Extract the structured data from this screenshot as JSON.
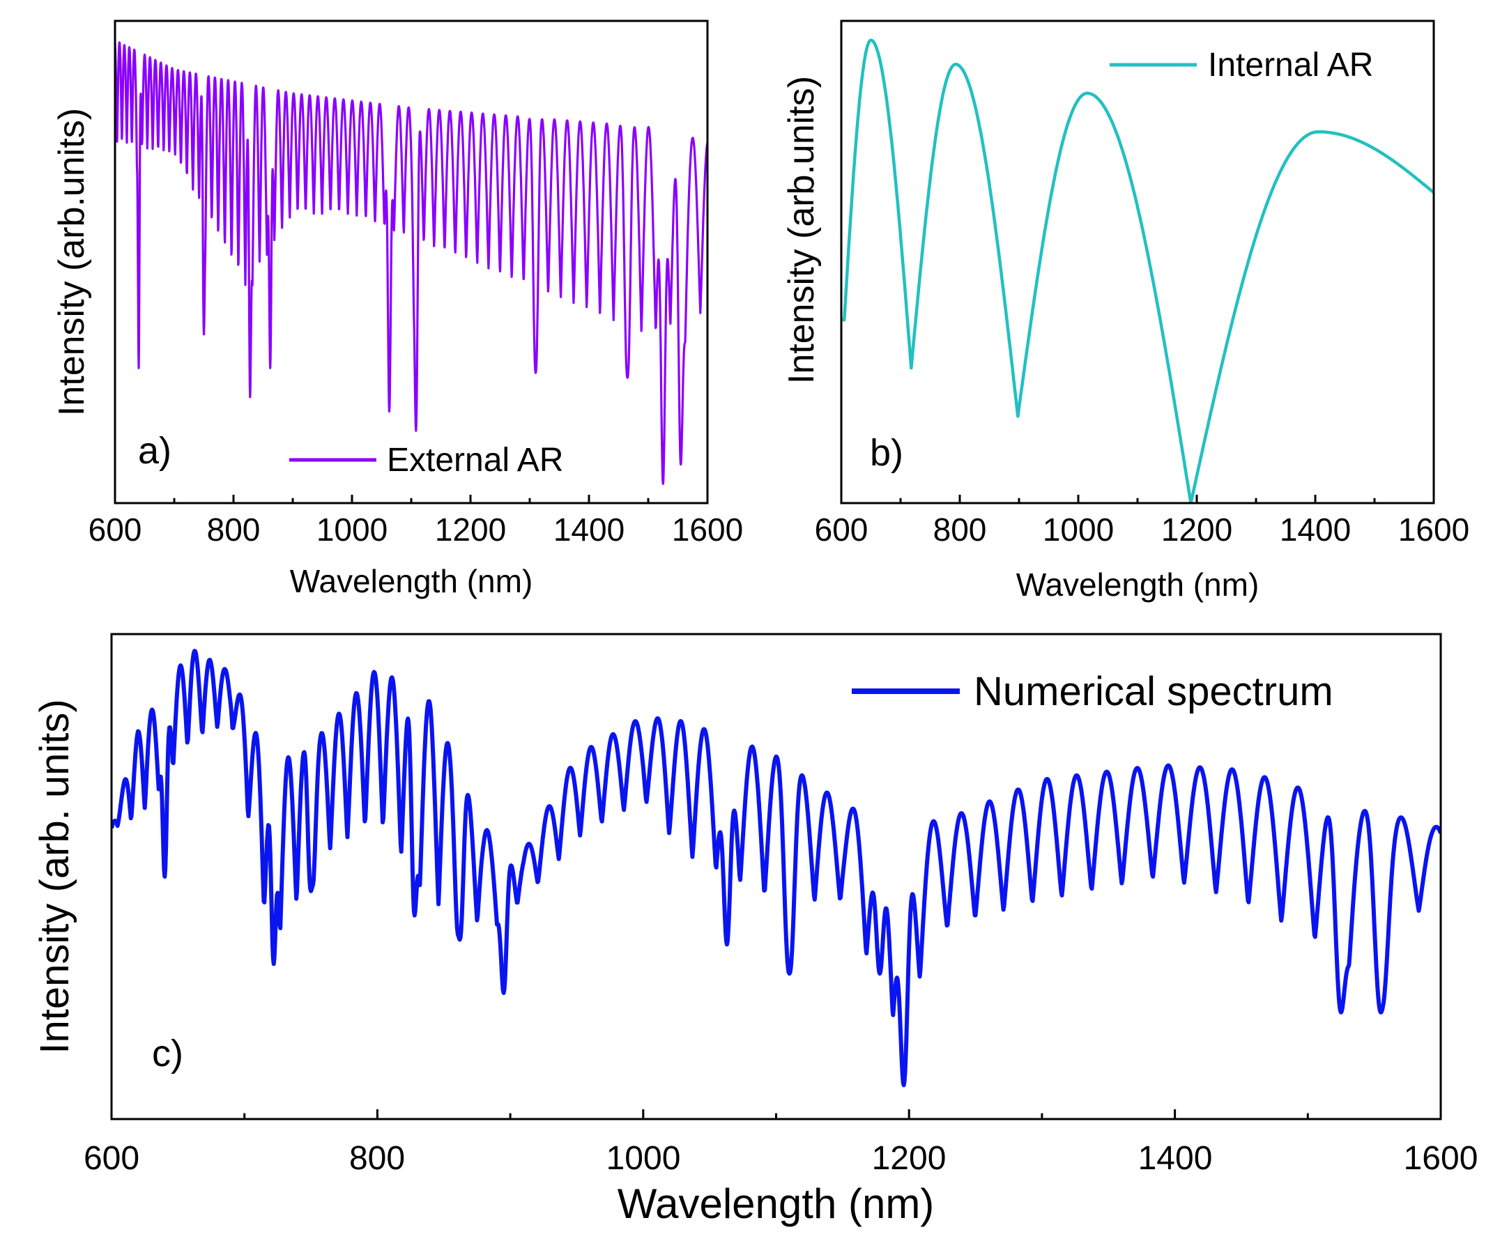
{
  "chart_data": [
    {
      "type": "line",
      "panel_label": "a)",
      "xlabel": "Wavelength (nm)",
      "ylabel": "Intensity (arb.units)",
      "xlim": [
        600,
        1600
      ],
      "ylim": [
        0,
        1
      ],
      "x_ticks": [
        "600",
        "800",
        "1000",
        "1200",
        "1400",
        "1600"
      ],
      "legend_position": "bottom-right",
      "series": [
        {
          "name": "External AR",
          "color": "#8a00ff",
          "model": {
            "envelope_top": [
              [
                600,
                0.96
              ],
              [
                700,
                0.9
              ],
              [
                900,
                0.85
              ],
              [
                1100,
                0.82
              ],
              [
                1300,
                0.8
              ],
              [
                1500,
                0.78
              ],
              [
                1600,
                0.75
              ]
            ],
            "envelope_bottom": [
              [
                600,
                0.75
              ],
              [
                700,
                0.72
              ],
              [
                820,
                0.45
              ],
              [
                900,
                0.6
              ],
              [
                1000,
                0.6
              ],
              [
                1100,
                0.55
              ],
              [
                1300,
                0.45
              ],
              [
                1500,
                0.35
              ],
              [
                1600,
                0.4
              ]
            ],
            "fringe_period_nm": [
              [
                600,
                8
              ],
              [
                1000,
                15
              ],
              [
                1600,
                26
              ]
            ],
            "deep_minima": [
              [
                640,
                0.28
              ],
              [
                750,
                0.35
              ],
              [
                828,
                0.22
              ],
              [
                862,
                0.28
              ],
              [
                1063,
                0.19
              ],
              [
                1108,
                0.15
              ],
              [
                1310,
                0.27
              ],
              [
                1465,
                0.26
              ],
              [
                1525,
                0.04
              ],
              [
                1555,
                0.08
              ]
            ]
          }
        }
      ]
    },
    {
      "type": "line",
      "panel_label": "b)",
      "xlabel": "Wavelength (nm)",
      "ylabel": "Intensity (arb.units)",
      "xlim": [
        600,
        1600
      ],
      "ylim": [
        0,
        1
      ],
      "x_ticks": [
        "600",
        "800",
        "1000",
        "1200",
        "1400",
        "1600"
      ],
      "legend_position": "top-right",
      "series": [
        {
          "name": "Internal AR",
          "color": "#22c0c0",
          "model": {
            "minima": [
              [
                605,
                0.38
              ],
              [
                718,
                0.28
              ],
              [
                898,
                0.18
              ],
              [
                1190,
                0.0
              ]
            ],
            "maxima": [
              [
                650,
                0.96
              ],
              [
                793,
                0.91
              ],
              [
                1015,
                0.85
              ],
              [
                1405,
                0.77
              ]
            ],
            "end": [
              1600,
              0.63
            ]
          }
        }
      ]
    },
    {
      "type": "line",
      "panel_label": "c)",
      "xlabel": "Wavelength (nm)",
      "ylabel": "Intensity (arb. units)",
      "xlim": [
        600,
        1600
      ],
      "ylim": [
        0,
        1
      ],
      "x_ticks": [
        "600",
        "800",
        "1000",
        "1200",
        "1400",
        "1600"
      ],
      "legend_position": "top-right",
      "series": [
        {
          "name": "Numerical spectrum",
          "color": "#0a14f0",
          "model": {
            "envelope_top": [
              [
                600,
                0.6
              ],
              [
                620,
                0.8
              ],
              [
                660,
                0.97
              ],
              [
                690,
                0.92
              ],
              [
                720,
                0.72
              ],
              [
                760,
                0.8
              ],
              [
                800,
                0.93
              ],
              [
                840,
                0.86
              ],
              [
                880,
                0.6
              ],
              [
                910,
                0.55
              ],
              [
                950,
                0.75
              ],
              [
                1000,
                0.83
              ],
              [
                1030,
                0.82
              ],
              [
                1100,
                0.75
              ],
              [
                1150,
                0.65
              ],
              [
                1190,
                0.6
              ],
              [
                1230,
                0.62
              ],
              [
                1300,
                0.7
              ],
              [
                1390,
                0.73
              ],
              [
                1450,
                0.72
              ],
              [
                1520,
                0.66
              ],
              [
                1600,
                0.6
              ]
            ],
            "envelope_bottom": [
              [
                600,
                0.6
              ],
              [
                620,
                0.62
              ],
              [
                660,
                0.78
              ],
              [
                690,
                0.82
              ],
              [
                720,
                0.35
              ],
              [
                760,
                0.55
              ],
              [
                800,
                0.62
              ],
              [
                840,
                0.45
              ],
              [
                880,
                0.4
              ],
              [
                910,
                0.45
              ],
              [
                950,
                0.58
              ],
              [
                1000,
                0.66
              ],
              [
                1030,
                0.55
              ],
              [
                1100,
                0.45
              ],
              [
                1150,
                0.45
              ],
              [
                1190,
                0.2
              ],
              [
                1230,
                0.4
              ],
              [
                1300,
                0.45
              ],
              [
                1390,
                0.5
              ],
              [
                1450,
                0.45
              ],
              [
                1520,
                0.35
              ],
              [
                1600,
                0.45
              ]
            ],
            "fringe_period_nm": [
              [
                600,
                10
              ],
              [
                1000,
                17
              ],
              [
                1600,
                27
              ]
            ],
            "deep_minima": [
              [
                640,
                0.5
              ],
              [
                722,
                0.32
              ],
              [
                750,
                0.47
              ],
              [
                828,
                0.42
              ],
              [
                862,
                0.37
              ],
              [
                895,
                0.26
              ],
              [
                1063,
                0.36
              ],
              [
                1110,
                0.3
              ],
              [
                1178,
                0.3
              ],
              [
                1196,
                0.07
              ],
              [
                1525,
                0.22
              ],
              [
                1555,
                0.22
              ]
            ]
          }
        }
      ]
    }
  ]
}
